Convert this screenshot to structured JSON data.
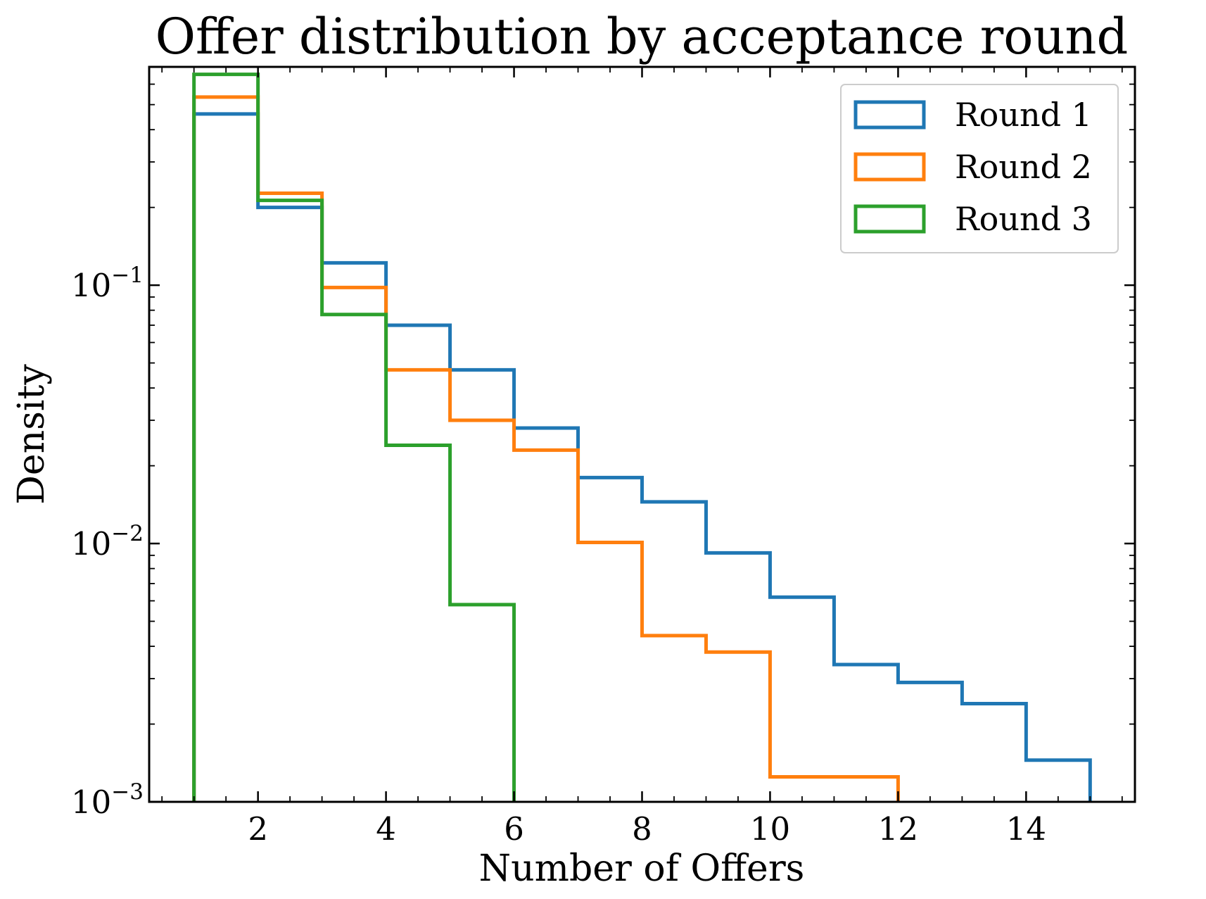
{
  "chart_data": {
    "type": "histogram",
    "title": "Offer distribution by acceptance round",
    "xlabel": "Number of Offers",
    "ylabel": "Density",
    "xlim": [
      0.3,
      15.7
    ],
    "ylim": [
      0.001,
      0.7
    ],
    "y_scale": "log",
    "grid": false,
    "legend_position": "top-right",
    "x_ticks": [
      2,
      4,
      6,
      8,
      10,
      12,
      14
    ],
    "x_tick_labels": [
      "2",
      "4",
      "6",
      "8",
      "10",
      "12",
      "14"
    ],
    "y_ticks": [
      0.001,
      0.01,
      0.1
    ],
    "y_tick_labels": [
      {
        "base": "10",
        "exp": "−3"
      },
      {
        "base": "10",
        "exp": "−2"
      },
      {
        "base": "10",
        "exp": "−1"
      }
    ],
    "bin_edges": [
      1,
      2,
      3,
      4,
      5,
      6,
      7,
      8,
      9,
      10,
      11,
      12,
      13,
      14,
      15
    ],
    "series": [
      {
        "name": "Round 1",
        "color": "#1f77b4",
        "values": [
          0.46,
          0.2,
          0.122,
          0.07,
          0.047,
          0.028,
          0.018,
          0.0145,
          0.0092,
          0.0062,
          0.0034,
          0.0029,
          0.0024,
          0.00145
        ]
      },
      {
        "name": "Round 2",
        "color": "#ff7f0e",
        "values": [
          0.535,
          0.227,
          0.098,
          0.047,
          0.03,
          0.023,
          0.0101,
          0.0044,
          0.0038,
          0.00125,
          0.00125
        ]
      },
      {
        "name": "Round 3",
        "color": "#2ca02c",
        "values": [
          0.655,
          0.213,
          0.077,
          0.024,
          0.0058
        ]
      }
    ]
  }
}
